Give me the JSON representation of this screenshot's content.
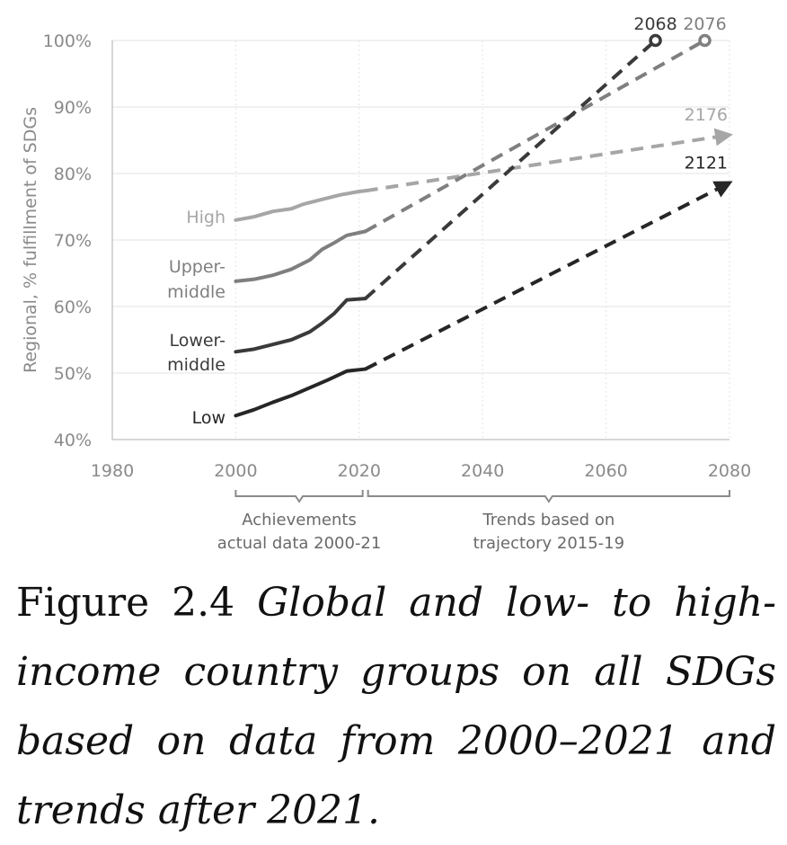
{
  "chart_data": {
    "type": "line",
    "ylabel": "Regional, % fulfillment of SDGs",
    "xlabel": "",
    "xlim": [
      1980,
      2080
    ],
    "ylim": [
      40,
      100
    ],
    "x_ticks": [
      "1980",
      "2000",
      "2020",
      "2040",
      "2060",
      "2080"
    ],
    "y_ticks": [
      "40%",
      "50%",
      "60%",
      "70%",
      "80%",
      "90%",
      "100%"
    ],
    "grid": true,
    "series": [
      {
        "name": "High",
        "color": "#a6a6a6",
        "actual": [
          [
            2000,
            73.0
          ],
          [
            2003,
            73.5
          ],
          [
            2006,
            74.3
          ],
          [
            2009,
            74.7
          ],
          [
            2011,
            75.4
          ],
          [
            2014,
            76.1
          ],
          [
            2017,
            76.8
          ],
          [
            2020,
            77.3
          ],
          [
            2021,
            77.4
          ]
        ],
        "trend": [
          [
            2021,
            77.4
          ],
          [
            2080,
            85.8
          ]
        ],
        "end_label": "2176",
        "end_marker": "arrow"
      },
      {
        "name": "Upper-middle",
        "color": "#7f7f7f",
        "actual": [
          [
            2000,
            63.8
          ],
          [
            2003,
            64.1
          ],
          [
            2006,
            64.7
          ],
          [
            2009,
            65.6
          ],
          [
            2012,
            67.0
          ],
          [
            2014,
            68.6
          ],
          [
            2016,
            69.6
          ],
          [
            2018,
            70.7
          ],
          [
            2021,
            71.3
          ]
        ],
        "trend": [
          [
            2021,
            71.3
          ],
          [
            2076,
            100.0
          ]
        ],
        "end_label": "2076",
        "end_marker": "circle"
      },
      {
        "name": "Lower-middle",
        "color": "#3a3a3a",
        "actual": [
          [
            2000,
            53.2
          ],
          [
            2003,
            53.6
          ],
          [
            2006,
            54.3
          ],
          [
            2009,
            55.0
          ],
          [
            2012,
            56.2
          ],
          [
            2014,
            57.5
          ],
          [
            2016,
            59.0
          ],
          [
            2018,
            61.0
          ],
          [
            2021,
            61.2
          ]
        ],
        "trend": [
          [
            2021,
            61.2
          ],
          [
            2068,
            100.0
          ]
        ],
        "end_label": "2068",
        "end_marker": "circle"
      },
      {
        "name": "Low",
        "color": "#262626",
        "actual": [
          [
            2000,
            43.6
          ],
          [
            2003,
            44.5
          ],
          [
            2006,
            45.6
          ],
          [
            2009,
            46.6
          ],
          [
            2012,
            47.8
          ],
          [
            2015,
            49.0
          ],
          [
            2018,
            50.3
          ],
          [
            2021,
            50.6
          ]
        ],
        "trend": [
          [
            2021,
            50.6
          ],
          [
            2080,
            78.6
          ]
        ],
        "end_label": "2121",
        "end_marker": "arrow"
      }
    ],
    "series_labels": {
      "high": "High",
      "upper_1": "Upper-",
      "upper_2": "middle",
      "lower_1": "Lower-",
      "lower_2": "middle",
      "low": "Low"
    },
    "brackets": [
      {
        "from": 2000,
        "to": 2021,
        "line1": "Achievements",
        "line2": "actual data 2000-21"
      },
      {
        "from": 2021,
        "to": 2080,
        "line1": "Trends based on",
        "line2": "trajectory 2015-19"
      }
    ]
  },
  "caption": {
    "label": "Figure 2.4",
    "text": "Global and low- to high-income country groups on all SDGs based on data from 2000–2021 and trends after 2021."
  }
}
